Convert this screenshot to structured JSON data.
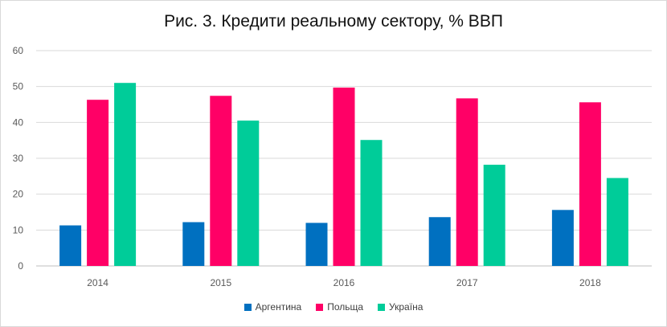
{
  "chart_data": {
    "type": "bar",
    "title": "Рис. 3. Кредити реальному сектору, % ВВП",
    "categories": [
      "2014",
      "2015",
      "2016",
      "2017",
      "2018"
    ],
    "series": [
      {
        "name": "Аргентина",
        "color": "#0070c0",
        "values": [
          11.3,
          12.2,
          12.0,
          13.6,
          15.6
        ]
      },
      {
        "name": "Польща",
        "color": "#ff0066",
        "values": [
          46.3,
          47.4,
          49.7,
          46.7,
          45.6
        ]
      },
      {
        "name": "Україна",
        "color": "#00cc99",
        "values": [
          51.0,
          40.5,
          35.1,
          28.2,
          24.5
        ]
      }
    ],
    "yticks": [
      "0",
      "10",
      "20",
      "30",
      "40",
      "50",
      "60"
    ],
    "ylim": [
      0,
      60
    ],
    "grid": true,
    "legend": "bottom"
  }
}
